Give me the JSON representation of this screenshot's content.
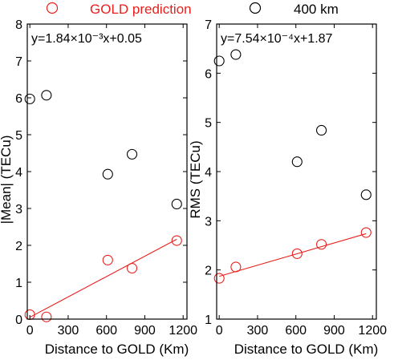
{
  "legend": {
    "entries": [
      {
        "label": "GOLD prediction",
        "color": "#e8201c",
        "marker": "circle"
      },
      {
        "label": "400  km",
        "color": "#000000",
        "marker": "circle"
      }
    ]
  },
  "chart_data": [
    {
      "type": "scatter",
      "xlabel": "Distance to GOLD (Km)",
      "ylabel": "|Mean| (TECu)",
      "xlim": [
        -20,
        1230
      ],
      "ylim": [
        0,
        8
      ],
      "xticks": [
        "0",
        "300",
        "600",
        "900",
        "1200"
      ],
      "yticks": [
        "0",
        "1",
        "2",
        "3",
        "4",
        "5",
        "6",
        "7",
        "8"
      ],
      "ytick_values": [
        0,
        1,
        2,
        3,
        4,
        5,
        6,
        7,
        8
      ],
      "equation": "y=1.84×10⁻³x+0.05",
      "fit": {
        "slope": 0.00184,
        "intercept": 0.05,
        "x_range": [
          0,
          1150
        ]
      },
      "series": [
        {
          "name": "GOLD prediction",
          "color": "#e8201c",
          "x": [
            0,
            130,
            610,
            800,
            1150
          ],
          "y": [
            0.12,
            0.06,
            1.6,
            1.38,
            2.13
          ]
        },
        {
          "name": "400  km",
          "color": "#000000",
          "x": [
            0,
            130,
            610,
            800,
            1150
          ],
          "y": [
            5.97,
            6.07,
            3.93,
            4.47,
            3.12
          ]
        }
      ]
    },
    {
      "type": "scatter",
      "xlabel": "Distance to GOLD (Km)",
      "ylabel": "RMS (TECu)",
      "xlim": [
        -20,
        1230
      ],
      "ylim": [
        1,
        7
      ],
      "xticks": [
        "0",
        "300",
        "600",
        "900",
        "1200"
      ],
      "yticks": [
        "1",
        "2",
        "3",
        "4",
        "5",
        "6",
        "7"
      ],
      "ytick_values": [
        1,
        2,
        3,
        4,
        5,
        6,
        7
      ],
      "equation": "y=7.54×10⁻⁴x+1.87",
      "fit": {
        "slope": 0.000754,
        "intercept": 1.87,
        "x_range": [
          0,
          1150
        ]
      },
      "series": [
        {
          "name": "GOLD prediction",
          "color": "#e8201c",
          "x": [
            0,
            130,
            610,
            800,
            1150
          ],
          "y": [
            1.83,
            2.06,
            2.33,
            2.52,
            2.76
          ]
        },
        {
          "name": "400  km",
          "color": "#000000",
          "x": [
            0,
            130,
            610,
            800,
            1150
          ],
          "y": [
            6.25,
            6.38,
            4.2,
            4.84,
            3.53
          ]
        }
      ]
    }
  ]
}
